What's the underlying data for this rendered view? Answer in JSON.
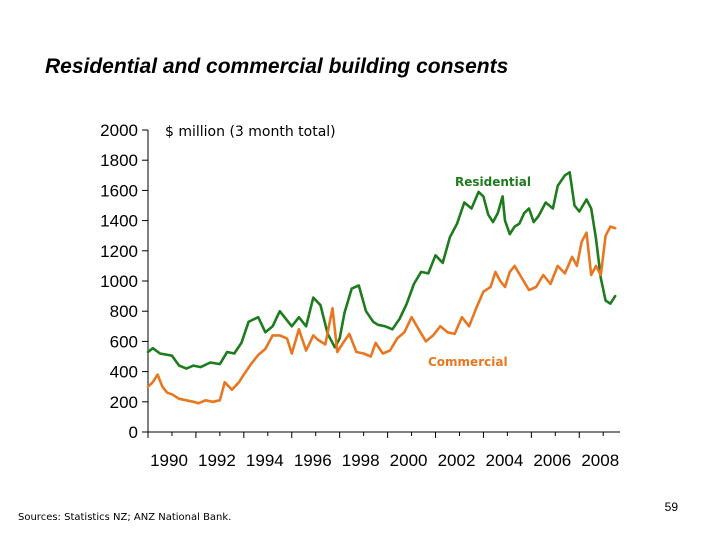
{
  "slide": {
    "title": "Residential and commercial building consents",
    "sources": "Sources:  Statistics NZ; ANZ National Bank.",
    "page_number": "59"
  },
  "chart_data": {
    "type": "line",
    "title": "Residential and commercial building consents",
    "unit_label": "$ million (3 month total)",
    "xlim": [
      1990,
      2009.7
    ],
    "ylim": [
      0,
      2000
    ],
    "yticks": [
      0,
      200,
      400,
      600,
      800,
      1000,
      1200,
      1400,
      1600,
      1800,
      2000
    ],
    "xticks": [
      1990,
      1992,
      1994,
      1996,
      1998,
      2000,
      2002,
      2004,
      2006,
      2008
    ],
    "grid": false,
    "legend": "inline labels",
    "series": [
      {
        "name": "Residential",
        "color": "#1e7b1e",
        "x": [
          1990.0,
          1990.2,
          1990.5,
          1991.0,
          1991.3,
          1991.6,
          1991.9,
          1992.2,
          1992.6,
          1993.0,
          1993.3,
          1993.6,
          1993.9,
          1994.2,
          1994.6,
          1994.9,
          1995.2,
          1995.5,
          1995.8,
          1996.0,
          1996.3,
          1996.6,
          1996.9,
          1997.2,
          1997.5,
          1997.8,
          1998.0,
          1998.2,
          1998.5,
          1998.8,
          1999.1,
          1999.4,
          1999.6,
          1999.9,
          2000.2,
          2000.5,
          2000.8,
          2001.1,
          2001.4,
          2001.7,
          2002.0,
          2002.3,
          2002.6,
          2002.9,
          2003.2,
          2003.5,
          2003.8,
          2004.0,
          2004.2,
          2004.4,
          2004.6,
          2004.8,
          2004.9,
          2005.1,
          2005.3,
          2005.5,
          2005.7,
          2005.9,
          2006.1,
          2006.3,
          2006.6,
          2006.9,
          2007.1,
          2007.4,
          2007.6,
          2007.8,
          2008.0,
          2008.3,
          2008.5,
          2008.7,
          2008.9,
          2009.1,
          2009.3,
          2009.5
        ],
        "values": [
          530,
          555,
          520,
          505,
          440,
          420,
          440,
          430,
          460,
          450,
          530,
          520,
          590,
          730,
          760,
          660,
          700,
          800,
          740,
          700,
          760,
          700,
          890,
          840,
          650,
          560,
          620,
          790,
          950,
          970,
          800,
          730,
          710,
          700,
          680,
          750,
          850,
          980,
          1060,
          1050,
          1170,
          1120,
          1290,
          1380,
          1520,
          1480,
          1590,
          1560,
          1440,
          1390,
          1450,
          1560,
          1400,
          1310,
          1360,
          1380,
          1450,
          1480,
          1390,
          1430,
          1520,
          1480,
          1630,
          1700,
          1720,
          1500,
          1460,
          1540,
          1480,
          1280,
          1020,
          870,
          850,
          900
        ]
      },
      {
        "name": "Commercial",
        "color": "#e87722",
        "x": [
          1990.0,
          1990.2,
          1990.4,
          1990.6,
          1990.8,
          1991.0,
          1991.3,
          1991.6,
          1991.9,
          1992.1,
          1992.4,
          1992.7,
          1993.0,
          1993.2,
          1993.5,
          1993.8,
          1994.0,
          1994.3,
          1994.6,
          1994.9,
          1995.2,
          1995.5,
          1995.8,
          1996.0,
          1996.3,
          1996.6,
          1996.9,
          1997.1,
          1997.4,
          1997.7,
          1997.9,
          1998.1,
          1998.4,
          1998.7,
          1999.0,
          1999.3,
          1999.5,
          1999.8,
          2000.1,
          2000.4,
          2000.7,
          2001.0,
          2001.3,
          2001.6,
          2001.9,
          2002.2,
          2002.5,
          2002.8,
          2003.1,
          2003.4,
          2003.7,
          2004.0,
          2004.3,
          2004.5,
          2004.7,
          2004.9,
          2005.1,
          2005.3,
          2005.6,
          2005.9,
          2006.2,
          2006.5,
          2006.8,
          2007.1,
          2007.4,
          2007.7,
          2007.9,
          2008.1,
          2008.3,
          2008.5,
          2008.7,
          2008.9,
          2009.1,
          2009.3,
          2009.5
        ],
        "values": [
          300,
          330,
          380,
          300,
          260,
          250,
          220,
          210,
          200,
          190,
          210,
          200,
          210,
          330,
          280,
          330,
          380,
          450,
          510,
          550,
          640,
          640,
          620,
          520,
          680,
          540,
          640,
          610,
          580,
          820,
          530,
          580,
          650,
          530,
          520,
          500,
          590,
          520,
          540,
          620,
          660,
          760,
          680,
          600,
          640,
          700,
          660,
          650,
          760,
          700,
          820,
          930,
          960,
          1060,
          1000,
          960,
          1060,
          1100,
          1020,
          940,
          960,
          1040,
          980,
          1100,
          1050,
          1160,
          1100,
          1260,
          1320,
          1040,
          1100,
          1040,
          1300,
          1360,
          1350
        ]
      }
    ]
  }
}
